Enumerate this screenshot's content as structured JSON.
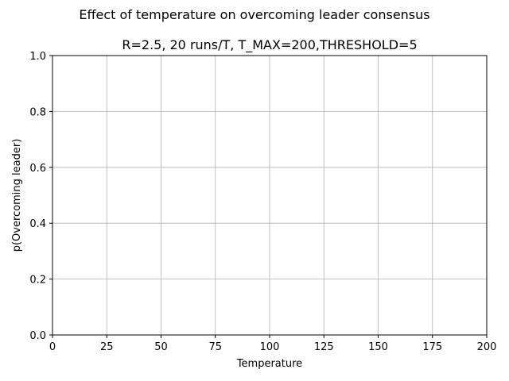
{
  "chart_data": {
    "type": "line",
    "suptitle": "Effect of temperature on overcoming leader consensus",
    "title": "R=2.5, 20 runs/T, T_MAX=200,THRESHOLD=5",
    "xlabel": "Temperature",
    "ylabel": "p(Overcoming leader)",
    "xlim": [
      0,
      200
    ],
    "ylim": [
      0.0,
      1.0
    ],
    "xticks": [
      "0",
      "25",
      "50",
      "75",
      "100",
      "125",
      "150",
      "175",
      "200"
    ],
    "yticks": [
      "0.0",
      "0.2",
      "0.4",
      "0.6",
      "0.8",
      "1.0"
    ],
    "grid": true,
    "series": []
  }
}
